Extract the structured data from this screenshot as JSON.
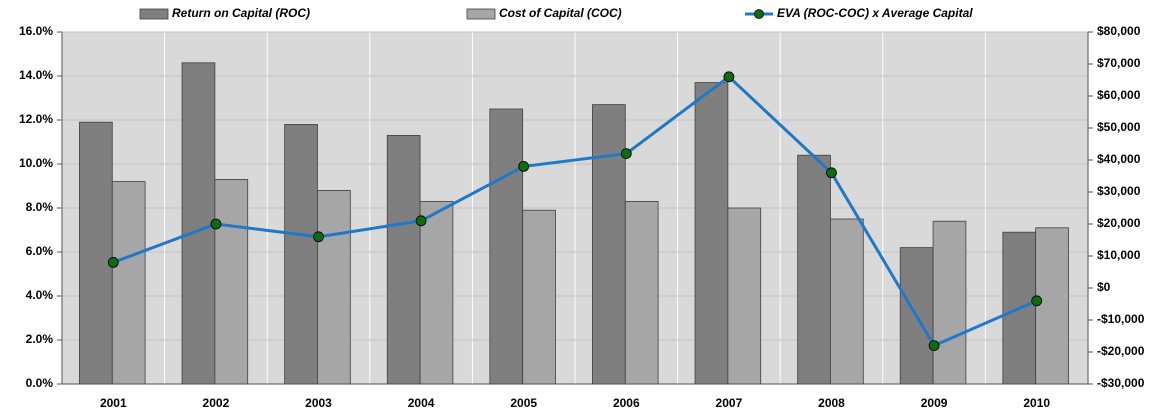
{
  "chart_data": {
    "type": "bar",
    "categories": [
      "2001",
      "2002",
      "2003",
      "2004",
      "2005",
      "2006",
      "2007",
      "2008",
      "2009",
      "2010"
    ],
    "series": [
      {
        "name": "Return on Capital (ROC)",
        "type": "bar",
        "color": "#7f7f7f",
        "values": [
          11.9,
          14.6,
          11.8,
          11.3,
          12.5,
          12.7,
          13.7,
          10.4,
          6.2,
          6.9
        ]
      },
      {
        "name": "Cost of Capital (COC)",
        "type": "bar",
        "color": "#a6a6a6",
        "values": [
          9.2,
          9.3,
          8.8,
          8.3,
          7.9,
          8.3,
          8.0,
          7.5,
          7.4,
          7.1
        ]
      },
      {
        "name": "EVA (ROC-COC) x Average Capital",
        "type": "line",
        "axis": "y2",
        "color": "#1f78c8",
        "marker_color": "#0f6b12",
        "values": [
          8000,
          20000,
          16000,
          21000,
          38000,
          42000,
          66000,
          36000,
          -18000,
          -4000
        ]
      }
    ],
    "ylim": [
      0,
      16
    ],
    "yticks": [
      {
        "value": 0,
        "label": "0.0%"
      },
      {
        "value": 2,
        "label": "2.0%"
      },
      {
        "value": 4,
        "label": "4.0%"
      },
      {
        "value": 6,
        "label": "6.0%"
      },
      {
        "value": 8,
        "label": "8.0%"
      },
      {
        "value": 10,
        "label": "10.0%"
      },
      {
        "value": 12,
        "label": "12.0%"
      },
      {
        "value": 14,
        "label": "14.0%"
      },
      {
        "value": 16,
        "label": "16.0%"
      }
    ],
    "y2lim": [
      -30000,
      80000
    ],
    "y2ticks": [
      {
        "value": -30000,
        "label": "-$30,000"
      },
      {
        "value": -20000,
        "label": "-$20,000"
      },
      {
        "value": -10000,
        "label": "-$10,000"
      },
      {
        "value": 0,
        "label": "$0"
      },
      {
        "value": 10000,
        "label": "$10,000"
      },
      {
        "value": 20000,
        "label": "$20,000"
      },
      {
        "value": 30000,
        "label": "$30,000"
      },
      {
        "value": 40000,
        "label": "$40,000"
      },
      {
        "value": 50000,
        "label": "$50,000"
      },
      {
        "value": 60000,
        "label": "$60,000"
      },
      {
        "value": 70000,
        "label": "$70,000"
      },
      {
        "value": 80000,
        "label": "$80,000"
      }
    ],
    "grid": true
  }
}
